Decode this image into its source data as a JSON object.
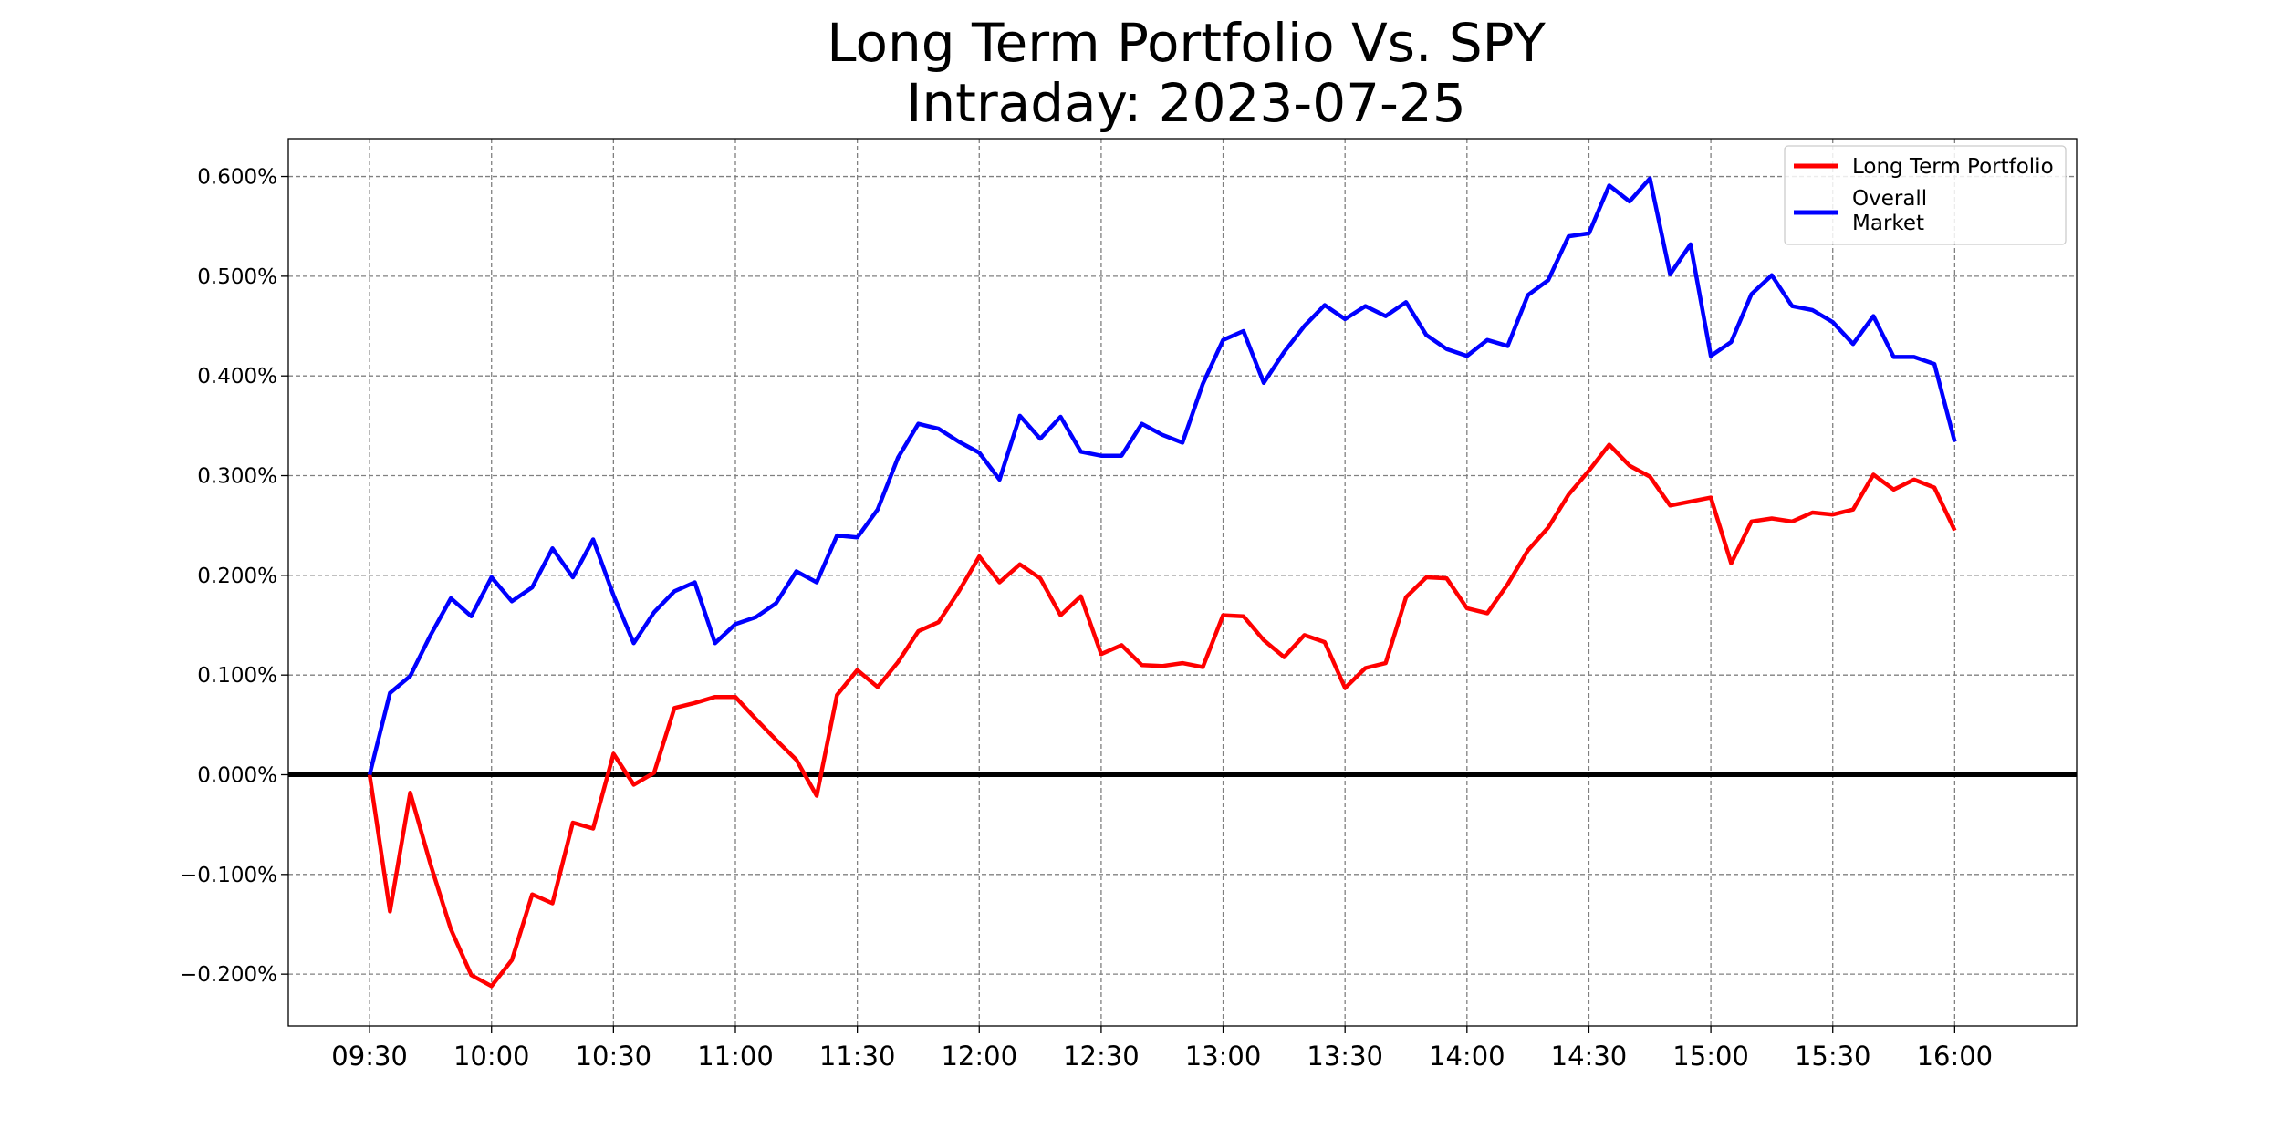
{
  "chart_data": {
    "type": "line",
    "title": "Long Term Portfolio Vs. SPY",
    "subtitle": "Intraday: 2023-07-25",
    "xlabel": "",
    "ylabel": "",
    "x_ticks": [
      "09:30",
      "10:00",
      "10:30",
      "11:00",
      "11:30",
      "12:00",
      "12:30",
      "13:00",
      "13:30",
      "14:00",
      "14:30",
      "15:00",
      "15:30",
      "16:00"
    ],
    "x_range": [
      "09:10",
      "16:30"
    ],
    "y_ticks": [
      -0.2,
      -0.1,
      0.0,
      0.1,
      0.2,
      0.3,
      0.4,
      0.5,
      0.6
    ],
    "y_tick_labels": [
      "−0.200%",
      "−0.100%",
      "0.000%",
      "0.100%",
      "0.200%",
      "0.300%",
      "0.400%",
      "0.500%",
      "0.600%"
    ],
    "ylim": [
      -0.252,
      0.638
    ],
    "y_unit": "%",
    "grid": true,
    "zero_line": true,
    "legend_position": "top-right",
    "x": [
      "09:30",
      "09:35",
      "09:40",
      "09:45",
      "09:50",
      "09:55",
      "10:00",
      "10:05",
      "10:10",
      "10:15",
      "10:20",
      "10:25",
      "10:30",
      "10:35",
      "10:40",
      "10:45",
      "10:50",
      "10:55",
      "11:00",
      "11:05",
      "11:10",
      "11:15",
      "11:20",
      "11:25",
      "11:30",
      "11:35",
      "11:40",
      "11:45",
      "11:50",
      "11:55",
      "12:00",
      "12:05",
      "12:10",
      "12:15",
      "12:20",
      "12:25",
      "12:30",
      "12:35",
      "12:40",
      "12:45",
      "12:50",
      "12:55",
      "13:00",
      "13:05",
      "13:10",
      "13:15",
      "13:20",
      "13:25",
      "13:30",
      "13:35",
      "13:40",
      "13:45",
      "13:50",
      "13:55",
      "14:00",
      "14:05",
      "14:10",
      "14:15",
      "14:20",
      "14:25",
      "14:30",
      "14:35",
      "14:40",
      "14:45",
      "14:50",
      "14:55",
      "15:00",
      "15:05",
      "15:10",
      "15:15",
      "15:20",
      "15:25",
      "15:30",
      "15:35",
      "15:40",
      "15:45",
      "15:50",
      "15:55",
      "16:00"
    ],
    "series": [
      {
        "name": "Long Term Portfolio",
        "color": "#ff0000",
        "values": [
          0.0,
          -0.137,
          -0.018,
          -0.09,
          -0.155,
          -0.201,
          -0.212,
          -0.186,
          -0.12,
          -0.129,
          -0.048,
          -0.054,
          0.021,
          -0.01,
          0.002,
          0.067,
          0.072,
          0.078,
          0.078,
          0.056,
          0.035,
          0.015,
          -0.021,
          0.08,
          0.105,
          0.088,
          0.113,
          0.144,
          0.153,
          0.184,
          0.219,
          0.193,
          0.211,
          0.197,
          0.16,
          0.179,
          0.121,
          0.13,
          0.11,
          0.109,
          0.112,
          0.108,
          0.16,
          0.159,
          0.135,
          0.118,
          0.14,
          0.133,
          0.087,
          0.107,
          0.112,
          0.178,
          0.198,
          0.197,
          0.167,
          0.162,
          0.191,
          0.225,
          0.248,
          0.281,
          0.305,
          0.331,
          0.31,
          0.299,
          0.27,
          0.274,
          0.278,
          0.212,
          0.254,
          0.257,
          0.254,
          0.263,
          0.261,
          0.266,
          0.301,
          0.286,
          0.296,
          0.288,
          0.245
        ]
      },
      {
        "name": "Overall\nMarket",
        "color": "#0000ff",
        "values": [
          0.0,
          0.082,
          0.099,
          0.14,
          0.177,
          0.159,
          0.198,
          0.174,
          0.188,
          0.227,
          0.198,
          0.236,
          0.18,
          0.132,
          0.163,
          0.184,
          0.193,
          0.132,
          0.151,
          0.158,
          0.172,
          0.204,
          0.193,
          0.24,
          0.238,
          0.266,
          0.318,
          0.352,
          0.347,
          0.334,
          0.323,
          0.296,
          0.36,
          0.337,
          0.359,
          0.324,
          0.32,
          0.32,
          0.352,
          0.341,
          0.333,
          0.392,
          0.436,
          0.445,
          0.393,
          0.424,
          0.45,
          0.471,
          0.457,
          0.47,
          0.46,
          0.474,
          0.441,
          0.427,
          0.42,
          0.436,
          0.43,
          0.481,
          0.496,
          0.54,
          0.543,
          0.591,
          0.575,
          0.598,
          0.502,
          0.532,
          0.42,
          0.434,
          0.482,
          0.501,
          0.47,
          0.466,
          0.454,
          0.432,
          0.46,
          0.419,
          0.419,
          0.412,
          0.334
        ]
      }
    ]
  }
}
